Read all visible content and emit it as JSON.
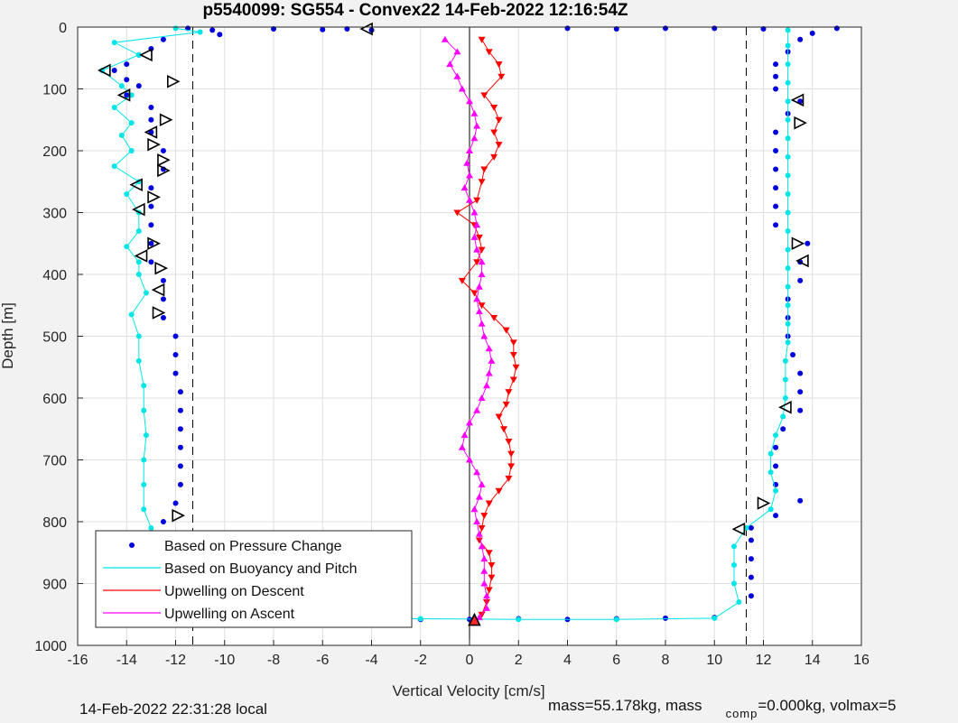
{
  "chart_data": {
    "type": "scatter",
    "title": "p5540099: SG554 - Convex22 14-Feb-2022 12:16:54Z",
    "xlabel": "Vertical Velocity [cm/s]",
    "ylabel": "Depth [m]",
    "xlim": [
      -16,
      16
    ],
    "ylim": [
      0,
      1000
    ],
    "y_reversed": true,
    "grid": true,
    "xticks": [
      -16,
      -14,
      -12,
      -10,
      -8,
      -6,
      -4,
      -2,
      0,
      2,
      4,
      6,
      8,
      10,
      12,
      14,
      16
    ],
    "yticks": [
      0,
      100,
      200,
      300,
      400,
      500,
      600,
      700,
      800,
      900,
      1000
    ],
    "reference_lines": [
      {
        "x": -11.3,
        "style": "dashed",
        "color": "#000000"
      },
      {
        "x": 11.3,
        "style": "dashed",
        "color": "#000000"
      },
      {
        "x": 0,
        "style": "solid",
        "color": "#000000"
      }
    ],
    "legend": {
      "placement": "bottom-left",
      "entries": [
        {
          "label": "Based on Pressure Change",
          "color": "#0000dd",
          "marker": "dot"
        },
        {
          "label": "Based on Buoyancy and Pitch",
          "color": "#00e5e5",
          "marker": "line"
        },
        {
          "label": "Upwelling on Descent",
          "color": "#ff0000",
          "marker": "line"
        },
        {
          "label": "Upwelling on Ascent",
          "color": "#ff00ff",
          "marker": "line"
        }
      ]
    },
    "series": [
      {
        "name": "Based on Pressure Change",
        "color": "#0000dd",
        "points": [
          [
            -11.5,
            2
          ],
          [
            -10.5,
            5
          ],
          [
            -10.2,
            12
          ],
          [
            -8,
            3
          ],
          [
            -6,
            4
          ],
          [
            -5,
            3
          ],
          [
            -4,
            5
          ],
          [
            -12.5,
            20
          ],
          [
            -13,
            35
          ],
          [
            -13.5,
            45
          ],
          [
            -14,
            60
          ],
          [
            -14.5,
            70
          ],
          [
            -14,
            85
          ],
          [
            -13.5,
            95
          ],
          [
            -14,
            110
          ],
          [
            -13,
            130
          ],
          [
            -13,
            150
          ],
          [
            -13,
            170
          ],
          [
            -12.5,
            200
          ],
          [
            -12.5,
            230
          ],
          [
            -13,
            260
          ],
          [
            -13,
            290
          ],
          [
            -13,
            320
          ],
          [
            -13,
            350
          ],
          [
            -13,
            380
          ],
          [
            -12.5,
            410
          ],
          [
            -12.5,
            440
          ],
          [
            -12.5,
            470
          ],
          [
            -12,
            500
          ],
          [
            -12,
            530
          ],
          [
            -12,
            560
          ],
          [
            -11.8,
            590
          ],
          [
            -11.8,
            620
          ],
          [
            -11.8,
            650
          ],
          [
            -11.8,
            680
          ],
          [
            -11.8,
            710
          ],
          [
            -11.8,
            740
          ],
          [
            -12,
            770
          ],
          [
            -12.5,
            800
          ],
          [
            -12.5,
            830
          ],
          [
            -12.5,
            860
          ],
          [
            -12.5,
            890
          ],
          [
            -12.5,
            920
          ],
          [
            -12.5,
            950
          ],
          [
            -2,
            958
          ],
          [
            0,
            958
          ],
          [
            2,
            957
          ],
          [
            4,
            958
          ],
          [
            6,
            957
          ],
          [
            8,
            956
          ],
          [
            10,
            955
          ],
          [
            11.5,
            920
          ],
          [
            11.5,
            890
          ],
          [
            11.5,
            860
          ],
          [
            11.5,
            830
          ],
          [
            11.5,
            810
          ],
          [
            12.5,
            790
          ],
          [
            13.5,
            766
          ],
          [
            12.5,
            740
          ],
          [
            12.5,
            710
          ],
          [
            12.5,
            680
          ],
          [
            12.8,
            650
          ],
          [
            13.5,
            620
          ],
          [
            13.5,
            590
          ],
          [
            13.5,
            560
          ],
          [
            13.2,
            530
          ],
          [
            13,
            500
          ],
          [
            13,
            470
          ],
          [
            13,
            440
          ],
          [
            13.5,
            410
          ],
          [
            13.5,
            380
          ],
          [
            13.8,
            350
          ],
          [
            12.5,
            320
          ],
          [
            12.5,
            290
          ],
          [
            12.5,
            260
          ],
          [
            12.5,
            230
          ],
          [
            12.5,
            200
          ],
          [
            12.5,
            170
          ],
          [
            13,
            140
          ],
          [
            13.5,
            120
          ],
          [
            12.5,
            100
          ],
          [
            12.5,
            80
          ],
          [
            12.5,
            60
          ],
          [
            13,
            40
          ],
          [
            13.5,
            20
          ],
          [
            14,
            10
          ],
          [
            15,
            2
          ],
          [
            4,
            2
          ],
          [
            6,
            3
          ],
          [
            8,
            2
          ],
          [
            10,
            2
          ],
          [
            12,
            3
          ]
        ]
      },
      {
        "name": "Based on Buoyancy and Pitch",
        "color": "#00e5e5",
        "points": [
          [
            -12,
            2
          ],
          [
            -11,
            8
          ],
          [
            -14.5,
            25
          ],
          [
            -13.5,
            45
          ],
          [
            -15,
            70
          ],
          [
            -14.2,
            95
          ],
          [
            -13.8,
            110
          ],
          [
            -14.5,
            130
          ],
          [
            -13.8,
            155
          ],
          [
            -14.2,
            175
          ],
          [
            -13.8,
            200
          ],
          [
            -14.5,
            225
          ],
          [
            -13.5,
            250
          ],
          [
            -14,
            270
          ],
          [
            -13.5,
            300
          ],
          [
            -13.5,
            330
          ],
          [
            -14,
            355
          ],
          [
            -13.5,
            380
          ],
          [
            -13.5,
            400
          ],
          [
            -13.2,
            430
          ],
          [
            -13.8,
            465
          ],
          [
            -13.5,
            500
          ],
          [
            -13.5,
            540
          ],
          [
            -13.3,
            580
          ],
          [
            -13.3,
            620
          ],
          [
            -13.2,
            660
          ],
          [
            -13.3,
            700
          ],
          [
            -13.3,
            740
          ],
          [
            -13.3,
            780
          ],
          [
            -13,
            810
          ],
          [
            -12.5,
            840
          ],
          [
            -12.5,
            870
          ],
          [
            -12.5,
            900
          ],
          [
            -12.5,
            930
          ],
          [
            -12.3,
            955
          ],
          [
            -2,
            957
          ],
          [
            2,
            958
          ],
          [
            6,
            958
          ],
          [
            10,
            956
          ],
          [
            11,
            930
          ],
          [
            10.8,
            900
          ],
          [
            10.8,
            870
          ],
          [
            10.8,
            840
          ],
          [
            11.3,
            810
          ],
          [
            12.3,
            780
          ],
          [
            12.5,
            750
          ],
          [
            12.3,
            720
          ],
          [
            12.3,
            690
          ],
          [
            12.5,
            660
          ],
          [
            12.8,
            630
          ],
          [
            12.9,
            600
          ],
          [
            12.9,
            570
          ],
          [
            12.9,
            540
          ],
          [
            13,
            510
          ],
          [
            13,
            480
          ],
          [
            13,
            450
          ],
          [
            13,
            420
          ],
          [
            13,
            390
          ],
          [
            13,
            360
          ],
          [
            13,
            330
          ],
          [
            13,
            300
          ],
          [
            13,
            270
          ],
          [
            13,
            240
          ],
          [
            13,
            210
          ],
          [
            13,
            180
          ],
          [
            13,
            150
          ],
          [
            13,
            120
          ],
          [
            13,
            90
          ],
          [
            13,
            60
          ],
          [
            13,
            30
          ],
          [
            13,
            5
          ]
        ]
      },
      {
        "name": "Upwelling on Descent",
        "color": "#ff0000",
        "points": [
          [
            0.5,
            20
          ],
          [
            0.8,
            40
          ],
          [
            1.2,
            60
          ],
          [
            1.3,
            80
          ],
          [
            0.6,
            110
          ],
          [
            1.0,
            130
          ],
          [
            1.2,
            150
          ],
          [
            1.0,
            170
          ],
          [
            1.2,
            190
          ],
          [
            1.0,
            210
          ],
          [
            0.6,
            230
          ],
          [
            0.5,
            250
          ],
          [
            0.3,
            280
          ],
          [
            -0.5,
            300
          ],
          [
            0.2,
            320
          ],
          [
            0.4,
            340
          ],
          [
            0.5,
            360
          ],
          [
            0.3,
            380
          ],
          [
            -0.3,
            410
          ],
          [
            0.2,
            430
          ],
          [
            0.5,
            450
          ],
          [
            1.0,
            470
          ],
          [
            1.5,
            490
          ],
          [
            1.8,
            510
          ],
          [
            1.8,
            530
          ],
          [
            1.9,
            550
          ],
          [
            1.8,
            570
          ],
          [
            1.6,
            590
          ],
          [
            1.5,
            610
          ],
          [
            1.2,
            630
          ],
          [
            1.4,
            650
          ],
          [
            1.6,
            670
          ],
          [
            1.7,
            690
          ],
          [
            1.7,
            710
          ],
          [
            1.6,
            730
          ],
          [
            1.2,
            750
          ],
          [
            0.8,
            770
          ],
          [
            0.6,
            790
          ],
          [
            0.5,
            810
          ],
          [
            0.4,
            830
          ],
          [
            0.8,
            850
          ],
          [
            0.9,
            870
          ],
          [
            0.9,
            890
          ],
          [
            0.8,
            910
          ],
          [
            0.7,
            930
          ],
          [
            0.5,
            950
          ]
        ]
      },
      {
        "name": "Upwelling on Ascent",
        "color": "#ff00ff",
        "points": [
          [
            -1.0,
            20
          ],
          [
            -0.5,
            40
          ],
          [
            -0.8,
            60
          ],
          [
            -0.5,
            80
          ],
          [
            -0.3,
            100
          ],
          [
            0.0,
            120
          ],
          [
            0.2,
            140
          ],
          [
            0.3,
            160
          ],
          [
            0.2,
            180
          ],
          [
            0.0,
            200
          ],
          [
            -0.1,
            220
          ],
          [
            0.0,
            240
          ],
          [
            -0.2,
            260
          ],
          [
            0.0,
            280
          ],
          [
            0.2,
            300
          ],
          [
            0.3,
            320
          ],
          [
            0.2,
            340
          ],
          [
            0.3,
            360
          ],
          [
            0.5,
            380
          ],
          [
            0.5,
            400
          ],
          [
            0.4,
            420
          ],
          [
            0.3,
            440
          ],
          [
            0.4,
            460
          ],
          [
            0.5,
            480
          ],
          [
            0.6,
            500
          ],
          [
            0.8,
            520
          ],
          [
            0.9,
            540
          ],
          [
            0.8,
            560
          ],
          [
            0.7,
            580
          ],
          [
            0.5,
            600
          ],
          [
            0.3,
            620
          ],
          [
            0.0,
            640
          ],
          [
            -0.2,
            660
          ],
          [
            -0.3,
            680
          ],
          [
            0.0,
            700
          ],
          [
            0.3,
            720
          ],
          [
            0.5,
            740
          ],
          [
            0.4,
            760
          ],
          [
            0.2,
            780
          ],
          [
            0.3,
            800
          ],
          [
            0.4,
            820
          ],
          [
            0.5,
            840
          ],
          [
            0.6,
            860
          ],
          [
            0.6,
            880
          ],
          [
            0.6,
            900
          ],
          [
            0.7,
            920
          ],
          [
            0.7,
            940
          ],
          [
            0.4,
            955
          ]
        ]
      }
    ],
    "marker_annotations": [
      {
        "symbol": "triangle-left",
        "x": -4.2,
        "y": 3
      },
      {
        "symbol": "triangle-left",
        "x": -13.2,
        "y": 45
      },
      {
        "symbol": "triangle-left",
        "x": -14.9,
        "y": 70
      },
      {
        "symbol": "triangle-right",
        "x": -12.1,
        "y": 88
      },
      {
        "symbol": "triangle-left",
        "x": -14.1,
        "y": 110
      },
      {
        "symbol": "triangle-right",
        "x": -12.4,
        "y": 150
      },
      {
        "symbol": "triangle-left",
        "x": -13.0,
        "y": 170
      },
      {
        "symbol": "triangle-right",
        "x": -12.9,
        "y": 190
      },
      {
        "symbol": "triangle-right",
        "x": -12.5,
        "y": 215
      },
      {
        "symbol": "triangle-right",
        "x": -12.5,
        "y": 232
      },
      {
        "symbol": "triangle-left",
        "x": -13.6,
        "y": 255
      },
      {
        "symbol": "triangle-right",
        "x": -12.9,
        "y": 275
      },
      {
        "symbol": "triangle-left",
        "x": -13.5,
        "y": 295
      },
      {
        "symbol": "triangle-right",
        "x": -12.9,
        "y": 350
      },
      {
        "symbol": "triangle-left",
        "x": -13.4,
        "y": 370
      },
      {
        "symbol": "triangle-right",
        "x": -12.6,
        "y": 390
      },
      {
        "symbol": "triangle-left",
        "x": -12.7,
        "y": 425
      },
      {
        "symbol": "triangle-right",
        "x": -12.7,
        "y": 462
      },
      {
        "symbol": "triangle-right",
        "x": -11.9,
        "y": 790
      },
      {
        "symbol": "triangle-left",
        "x": -12.4,
        "y": 830
      },
      {
        "symbol": "triangle-left",
        "x": -12.3,
        "y": 915
      },
      {
        "symbol": "triangle-left",
        "x": -12.3,
        "y": 950
      },
      {
        "symbol": "triangle-left",
        "x": 13.4,
        "y": 118
      },
      {
        "symbol": "triangle-right",
        "x": 13.5,
        "y": 155
      },
      {
        "symbol": "triangle-right",
        "x": 13.4,
        "y": 350
      },
      {
        "symbol": "triangle-left",
        "x": 13.6,
        "y": 378
      },
      {
        "symbol": "triangle-left",
        "x": 12.9,
        "y": 615
      },
      {
        "symbol": "triangle-right",
        "x": 12.0,
        "y": 770
      },
      {
        "symbol": "triangle-left",
        "x": 11.0,
        "y": 812
      },
      {
        "symbol": "triangle-up",
        "x": 0.2,
        "y": 960
      }
    ]
  },
  "footer": {
    "local_time": "14-Feb-2022 22:31:28 local",
    "mass_text": "mass=55.178kg, mass",
    "comp_subscript": "comp",
    "comp_text": "=0.000kg, volmax=5"
  }
}
